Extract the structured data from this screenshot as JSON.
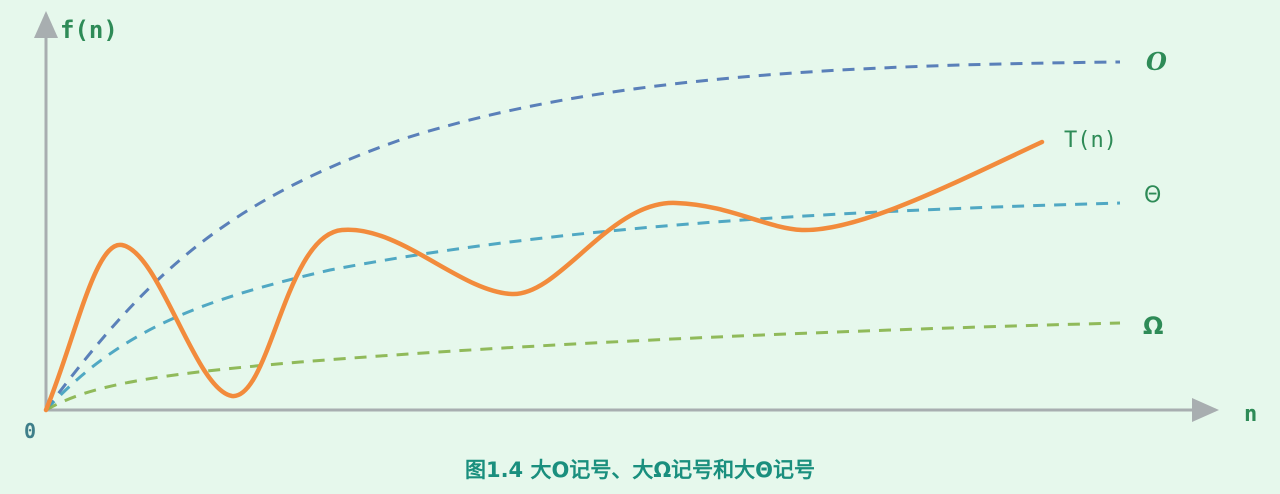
{
  "axes": {
    "y_label": "f(n)",
    "x_label": "n",
    "origin_label": "0"
  },
  "curves": [
    {
      "id": "upper",
      "label": "Ο",
      "color": "#4a72b4"
    },
    {
      "id": "tight",
      "label": "Θ",
      "color": "#3f9fbf"
    },
    {
      "id": "lower",
      "label": "Ω",
      "color": "#86b24a"
    },
    {
      "id": "actual",
      "label": "T(n)",
      "color": "#f28b3c"
    }
  ],
  "caption": "图1.4 大Ο记号、大Ω记号和大Θ记号",
  "colors": {
    "background": "#e6f8ec",
    "axis": "#a8aeb0",
    "label_text": "#2e8b57",
    "caption_text": "#1a8f7e"
  }
}
